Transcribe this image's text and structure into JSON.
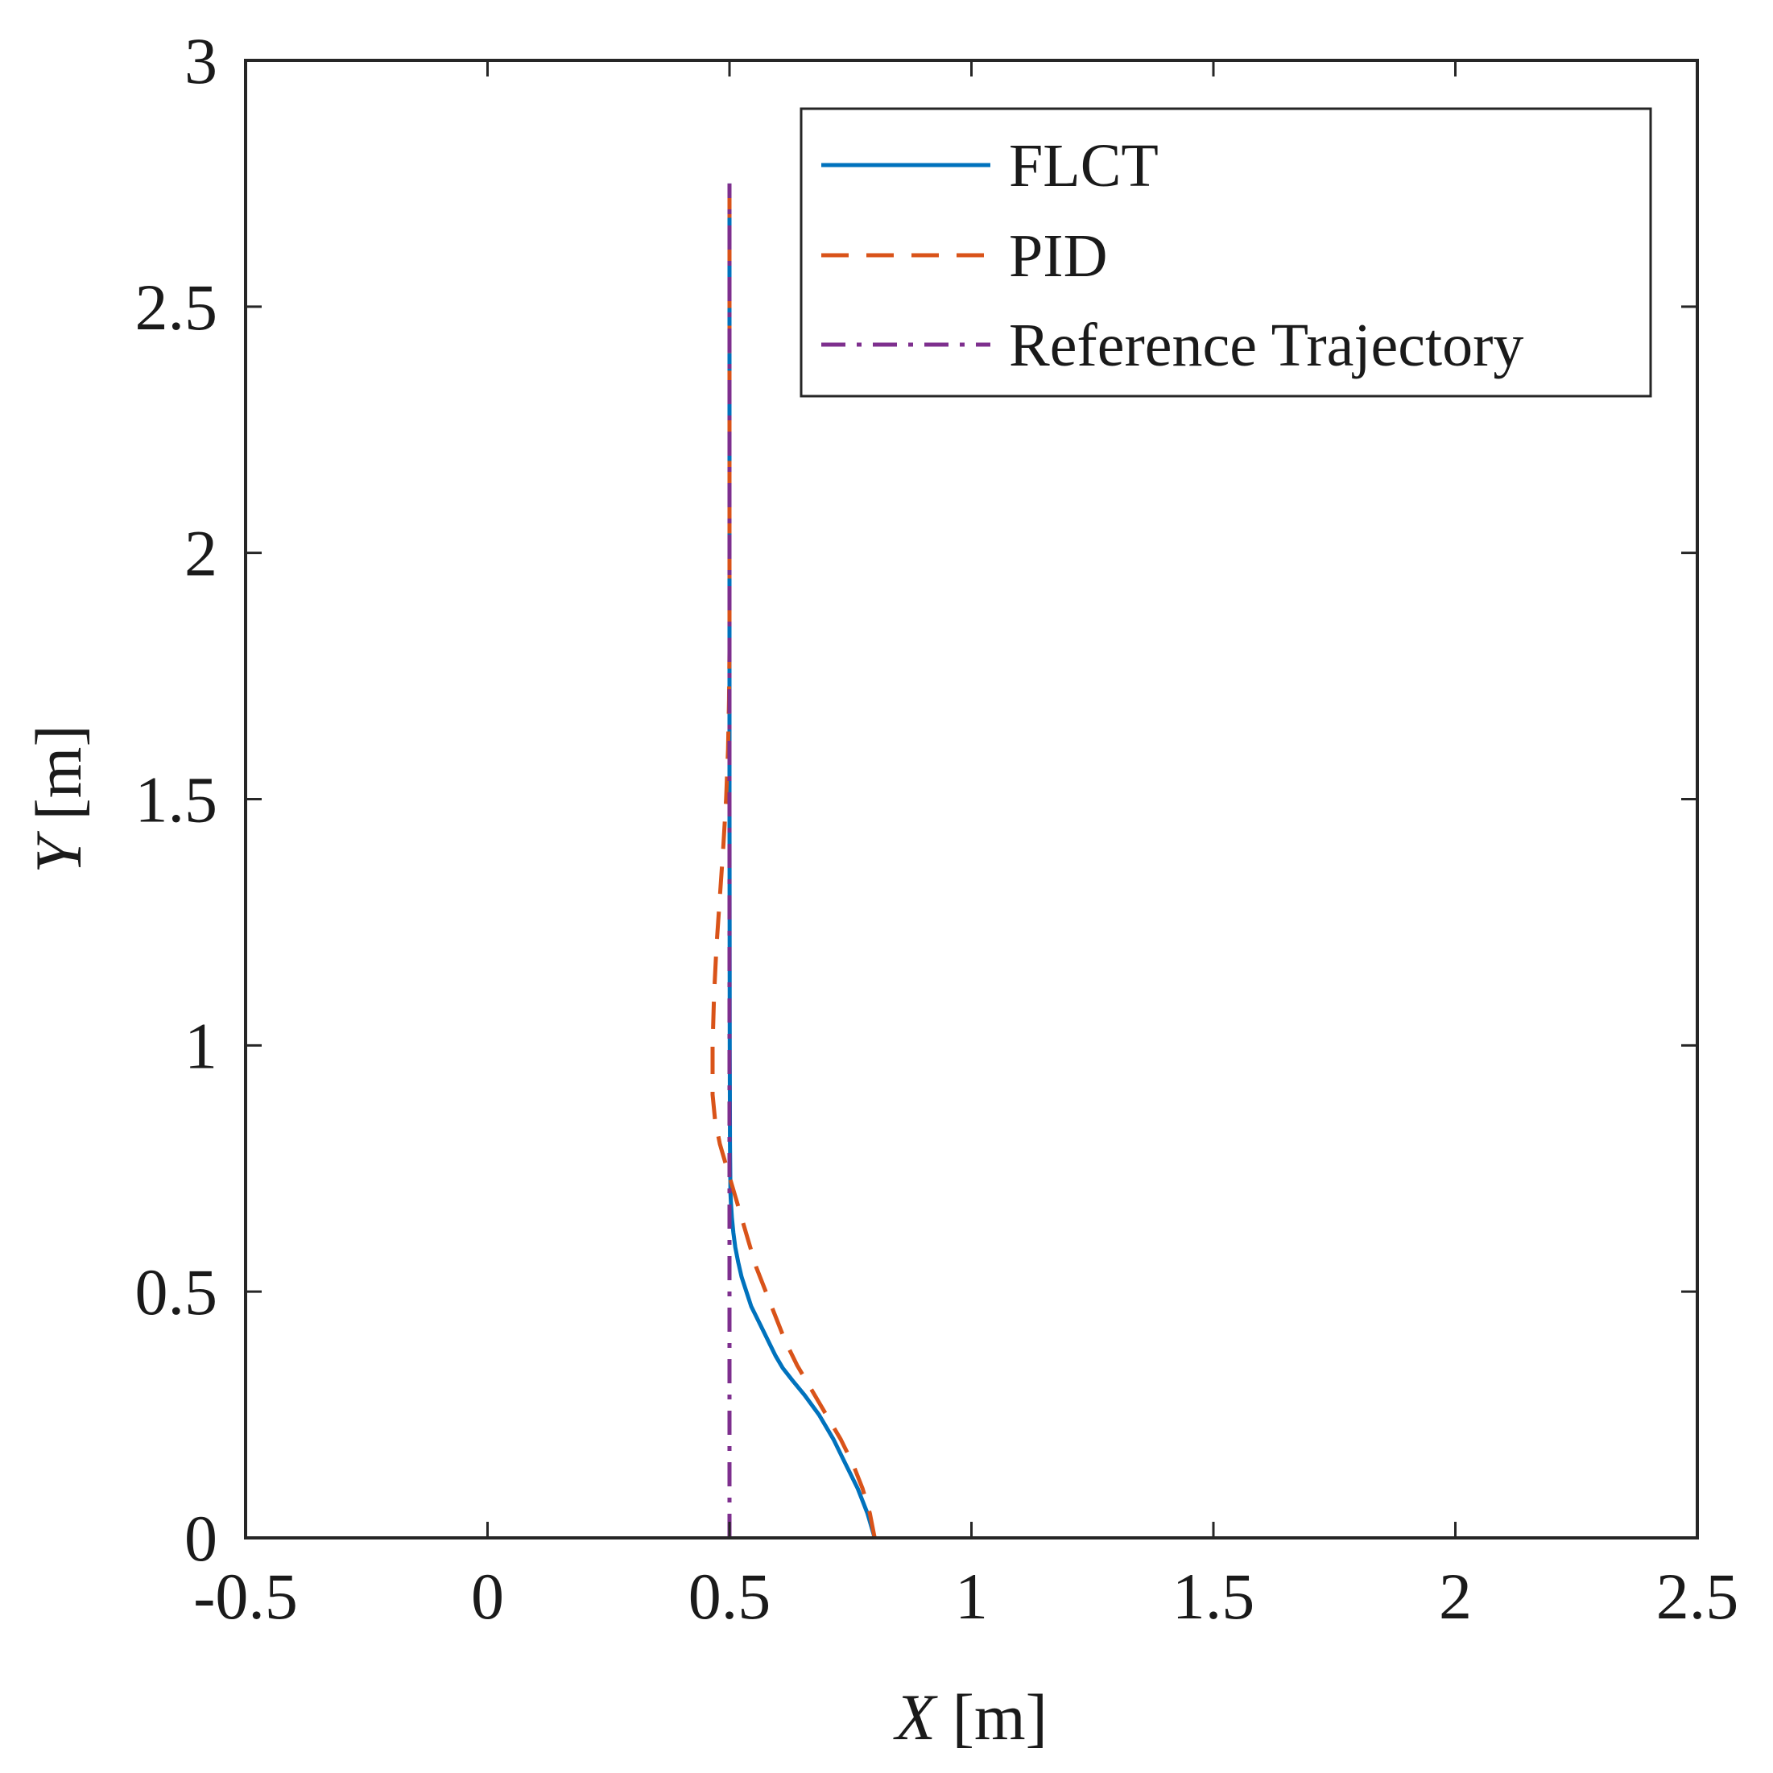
{
  "chart_data": {
    "type": "line",
    "title": "",
    "xlabel": {
      "var": "X",
      "unit": " [m]"
    },
    "ylabel": {
      "var": "Y",
      "unit": " [m]"
    },
    "xlim": [
      -0.5,
      2.5
    ],
    "ylim": [
      0,
      3
    ],
    "xticks": [
      -0.5,
      0,
      0.5,
      1,
      1.5,
      2,
      2.5
    ],
    "xtick_labels": [
      "-0.5",
      "0",
      "0.5",
      "1",
      "1.5",
      "2",
      "2.5"
    ],
    "yticks": [
      0,
      0.5,
      1,
      1.5,
      2,
      2.5,
      3
    ],
    "ytick_labels": [
      "0",
      "0.5",
      "1",
      "1.5",
      "2",
      "2.5",
      "3"
    ],
    "grid": false,
    "legend_position": "top-right",
    "series": [
      {
        "name": "FLCT",
        "color": "#0072BD",
        "style": "solid",
        "x": [
          0.8,
          0.785,
          0.765,
          0.74,
          0.715,
          0.685,
          0.655,
          0.63,
          0.61,
          0.595,
          0.585,
          0.575,
          0.565,
          0.555,
          0.545,
          0.535,
          0.525,
          0.518,
          0.512,
          0.508,
          0.505,
          0.503,
          0.502,
          0.501,
          0.5005,
          0.5,
          0.5
        ],
        "y": [
          0,
          0.05,
          0.1,
          0.15,
          0.2,
          0.25,
          0.29,
          0.32,
          0.345,
          0.37,
          0.39,
          0.41,
          0.43,
          0.45,
          0.47,
          0.5,
          0.53,
          0.56,
          0.59,
          0.62,
          0.65,
          0.68,
          0.7,
          0.8,
          1.0,
          1.5,
          2.75
        ]
      },
      {
        "name": "PID",
        "color": "#D95319",
        "style": "dashed",
        "x": [
          0.8,
          0.79,
          0.775,
          0.755,
          0.73,
          0.7,
          0.67,
          0.64,
          0.615,
          0.595,
          0.575,
          0.555,
          0.54,
          0.525,
          0.51,
          0.495,
          0.48,
          0.47,
          0.465,
          0.465,
          0.468,
          0.473,
          0.48,
          0.487,
          0.493,
          0.497,
          0.499,
          0.5,
          0.5
        ],
        "y": [
          0,
          0.05,
          0.1,
          0.15,
          0.2,
          0.25,
          0.3,
          0.35,
          0.4,
          0.45,
          0.5,
          0.55,
          0.6,
          0.65,
          0.7,
          0.75,
          0.8,
          0.85,
          0.9,
          1.0,
          1.1,
          1.2,
          1.3,
          1.4,
          1.5,
          1.6,
          1.7,
          1.8,
          2.75
        ]
      },
      {
        "name": "Reference Trajectory",
        "color": "#7E2F8E",
        "style": "dashdot",
        "x": [
          0.5,
          0.5
        ],
        "y": [
          0,
          2.75
        ]
      }
    ]
  }
}
